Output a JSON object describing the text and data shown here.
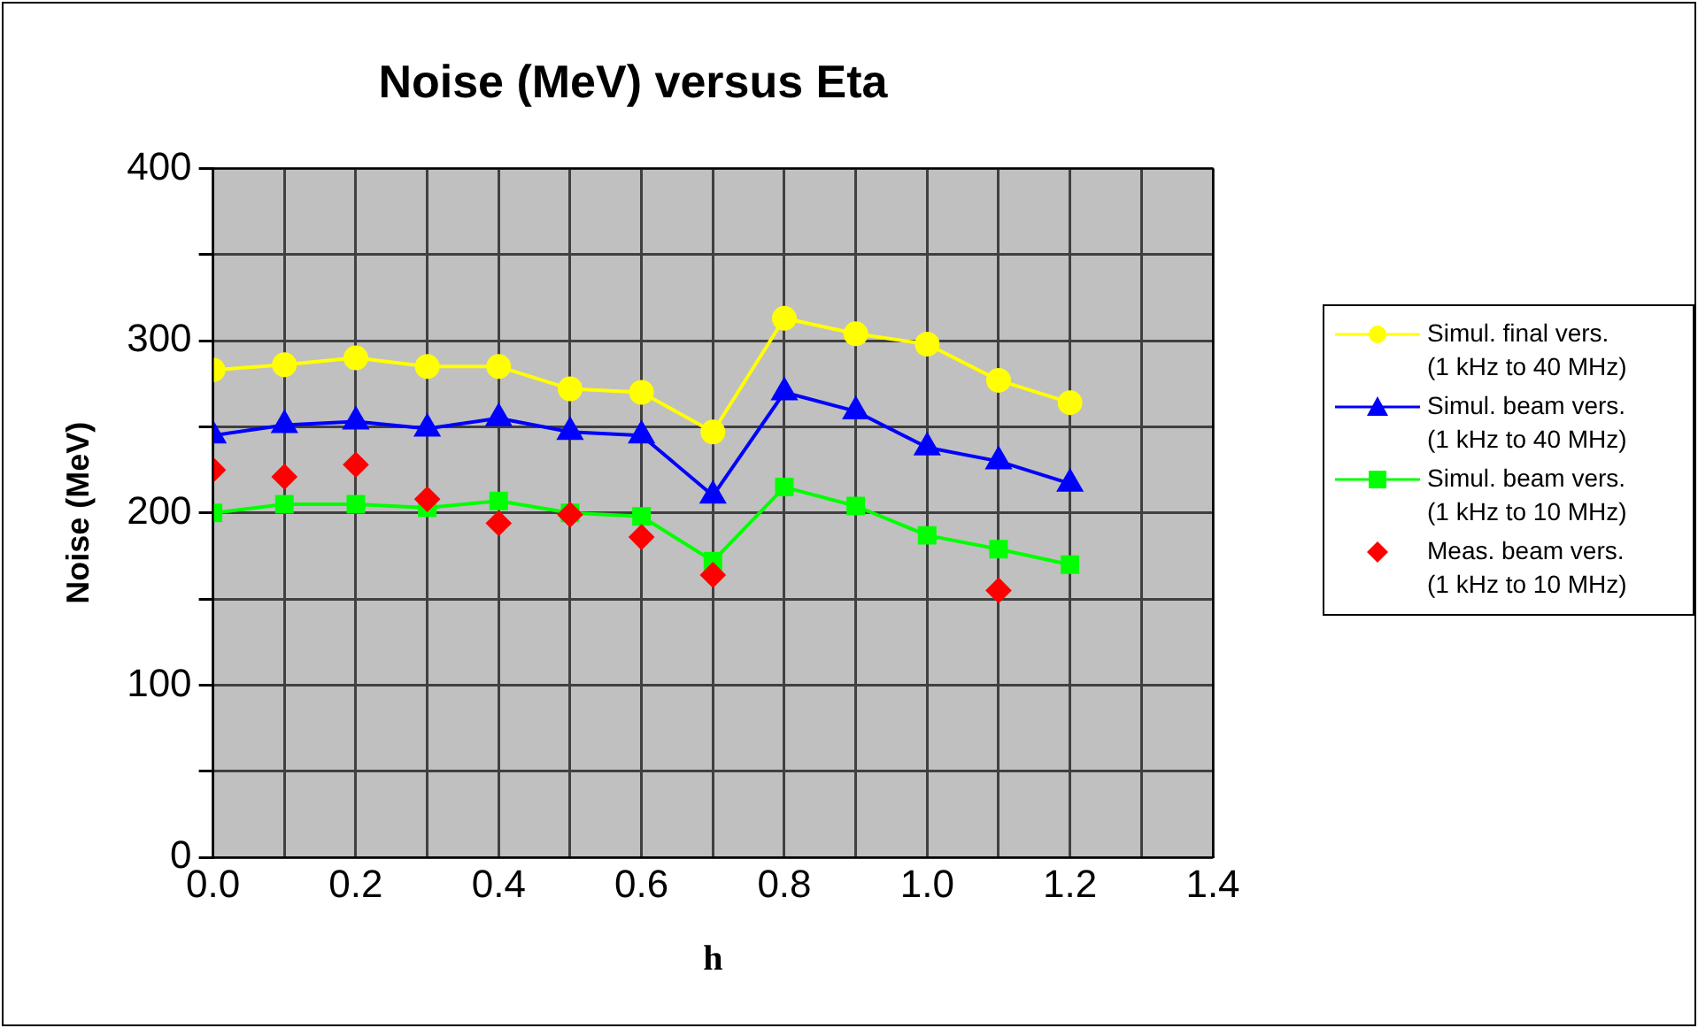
{
  "chart_data": {
    "type": "line",
    "title": "Noise (MeV) versus Eta",
    "xlabel": "h",
    "ylabel": "Noise (MeV)",
    "x": [
      0,
      0.1,
      0.2,
      0.3,
      0.4,
      0.5,
      0.6,
      0.7,
      0.8,
      0.9,
      1.0,
      1.1,
      1.2
    ],
    "xlim": [
      0,
      1.4
    ],
    "xticks": [
      {
        "value": 0,
        "label": "0.0"
      },
      {
        "value": 0.1,
        "label": null
      },
      {
        "value": 0.2,
        "label": "0.2"
      },
      {
        "value": 0.3,
        "label": null
      },
      {
        "value": 0.4,
        "label": "0.4"
      },
      {
        "value": 0.5,
        "label": null
      },
      {
        "value": 0.6,
        "label": "0.6"
      },
      {
        "value": 0.7,
        "label": null
      },
      {
        "value": 0.8,
        "label": "0.8"
      },
      {
        "value": 0.9,
        "label": null
      },
      {
        "value": 1.0,
        "label": "1.0"
      },
      {
        "value": 1.1,
        "label": null
      },
      {
        "value": 1.2,
        "label": "1.2"
      },
      {
        "value": 1.3,
        "label": null
      },
      {
        "value": 1.4,
        "label": "1.4"
      }
    ],
    "ylim": [
      0,
      400
    ],
    "yticks": [
      0,
      {
        "value": 50,
        "label": null
      },
      100,
      {
        "value": 150,
        "label": null
      },
      200,
      {
        "value": 250,
        "label": null
      },
      300,
      {
        "value": 350,
        "label": null
      },
      400
    ],
    "grid": true,
    "legend": "right",
    "line_style": "solid",
    "series": [
      {
        "name": "Simul. final vers. (1 kHz to 40 MHz)",
        "color": "#ffff00",
        "marker": "circle",
        "values": [
          283,
          286,
          290,
          285,
          285,
          272,
          270,
          247,
          313,
          304,
          298,
          277,
          264
        ]
      },
      {
        "name": "Simul. beam vers. (1 kHz to 40 MHz)",
        "color": "#0000ff",
        "marker": "triangle",
        "values": [
          245,
          251,
          253,
          249,
          255,
          247,
          245,
          210,
          270,
          259,
          238,
          230,
          217
        ]
      },
      {
        "name": "Simul. beam vers. (1 kHz to 10 MHz)",
        "color": "#00ff00",
        "marker": "square",
        "values": [
          200,
          205,
          205,
          203,
          207,
          200,
          198,
          172,
          215,
          204,
          187,
          179,
          170
        ]
      },
      {
        "name": "Meas. beam vers. (1 kHz to 10 MHz)",
        "type": "scatter",
        "color": "#ff0000",
        "marker": "diamond",
        "values": [
          225,
          221,
          228,
          208,
          194,
          199,
          186,
          164,
          null,
          null,
          null,
          155,
          null
        ]
      }
    ]
  }
}
